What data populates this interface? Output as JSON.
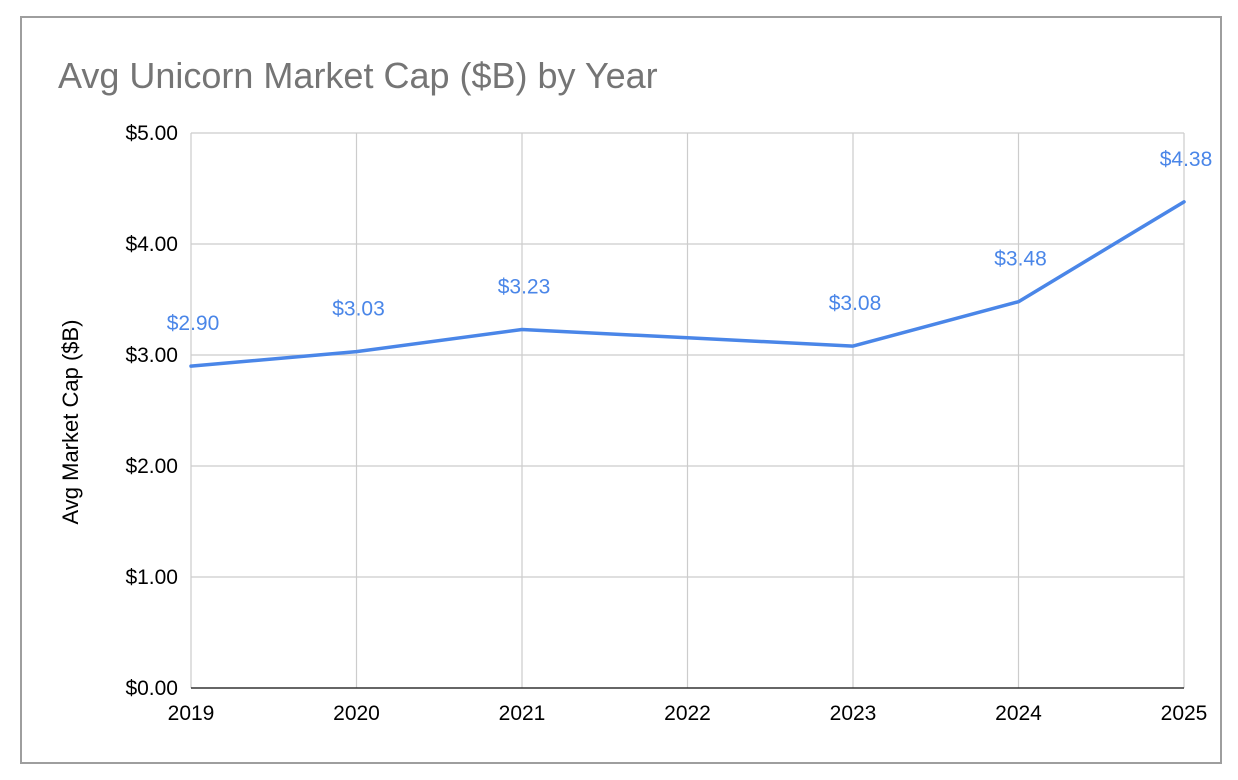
{
  "chart_data": {
    "type": "line",
    "title": "Avg Unicorn Market Cap ($B) by Year",
    "xlabel": "",
    "ylabel": "Avg Market Cap ($B)",
    "ylim": [
      0,
      5
    ],
    "yticks": [
      "$0.00",
      "$1.00",
      "$2.00",
      "$3.00",
      "$4.00",
      "$5.00"
    ],
    "categories": [
      "2019",
      "2020",
      "2021",
      "2022",
      "2023",
      "2024",
      "2025"
    ],
    "values": [
      2.9,
      3.03,
      3.23,
      3.155,
      3.08,
      3.48,
      4.38
    ],
    "data_labels": [
      "$2.90",
      "$3.03",
      "$3.23",
      "",
      "$3.08",
      "$3.48",
      "$4.38"
    ],
    "grid": true,
    "legend": "none",
    "line_color": "#4a86e8"
  }
}
